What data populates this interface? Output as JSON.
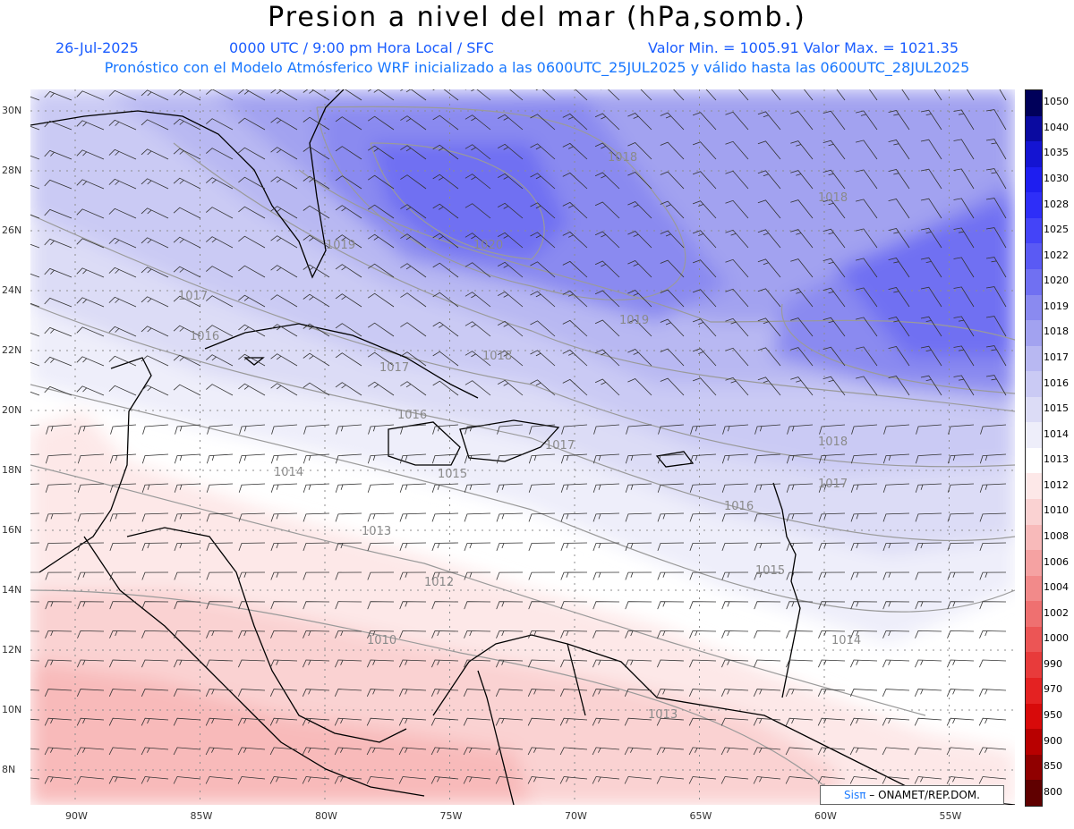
{
  "title": "Presion a nivel del mar (hPa,somb.)",
  "date": "26-Jul-2025",
  "time_info": "0000 UTC / 9:00 pm Hora Local / SFC",
  "range_info": "Valor Min. = 1005.91  Valor Max. = 1021.35",
  "forecast_info": "Pronóstico con el Modelo Atmósferico WRF inicializado a las 0600UTC_25JUL2025 y válido hasta las  0600UTC_28JUL2025",
  "lat_labels": [
    "30N",
    "28N",
    "26N",
    "24N",
    "22N",
    "20N",
    "18N",
    "16N",
    "14N",
    "12N",
    "10N",
    "8N"
  ],
  "lon_labels": [
    "90W",
    "85W",
    "80W",
    "75W",
    "70W",
    "65W",
    "60W",
    "55W"
  ],
  "colorbar": {
    "levels": [
      "1050",
      "1040",
      "1035",
      "1030",
      "1028",
      "1025",
      "1022",
      "1020",
      "1019",
      "1018",
      "1017",
      "1016",
      "1015",
      "1014",
      "1013",
      "1012",
      "1010",
      "1008",
      "1006",
      "1004",
      "1002",
      "1000",
      "990",
      "970",
      "950",
      "900",
      "850",
      "800"
    ],
    "colors": [
      "#00005a",
      "#0a0aa0",
      "#1414d2",
      "#1e1ef0",
      "#2e2ef8",
      "#4444f8",
      "#5a5af4",
      "#7070f2",
      "#8a8af0",
      "#a2a2f0",
      "#b8b8f2",
      "#cacaf4",
      "#dcdcf6",
      "#eeeefa",
      "#ffffff",
      "#fde8e8",
      "#fad2d2",
      "#f8baba",
      "#f5a2a2",
      "#f28a8a",
      "#ef7070",
      "#ec5555",
      "#e83b3b",
      "#e42222",
      "#d80a0a",
      "#b80000",
      "#900000",
      "#600000"
    ]
  },
  "contour_labels": [
    "1018",
    "1018",
    "1019",
    "1017",
    "1020",
    "1016",
    "1017",
    "1019",
    "1018",
    "1016",
    "1017",
    "1018",
    "1014",
    "1015",
    "1017",
    "1016",
    "1013",
    "1015",
    "1012",
    "1010",
    "1014",
    "1013"
  ],
  "credit": {
    "brand": "Sisπ",
    "text": "– ONAMET/REP.DOM."
  }
}
